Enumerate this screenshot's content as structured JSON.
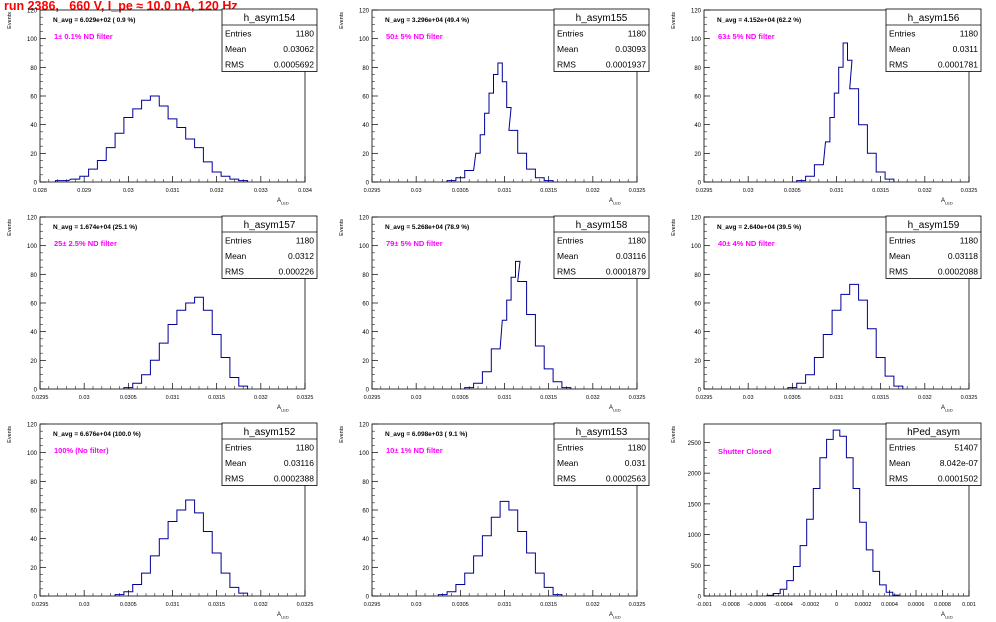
{
  "page": {
    "title": "run 2386,   660 V, I_pe ≈ 10.0 nA, 120 Hz"
  },
  "colors": {
    "title": "#ff0000",
    "histogram_line": "#000099",
    "annotation": "#ff00ff",
    "axis": "#000000"
  },
  "stats_labels": {
    "entries": "Entries",
    "mean": "Mean",
    "rms": "RMS"
  },
  "chart_data": [
    {
      "type": "bar",
      "name": "h_asym154",
      "ylabel": "Events",
      "xlabel": "A_LED",
      "navg": "N_avg = 6.029e+02 ( 0.9 %)",
      "filter": "1± 0.1% ND filter",
      "entries": "1180",
      "mean": "0.03062",
      "rms": "0.0005692",
      "xlim": [
        0.028,
        0.034
      ],
      "ylim": [
        0,
        120
      ],
      "xticks": [
        "0.028",
        "0.029",
        "0.03",
        "0.031",
        "0.032",
        "0.033",
        "0.034"
      ],
      "yticks": [
        "0",
        "20",
        "40",
        "60",
        "80",
        "100",
        "120"
      ],
      "x": [
        0.0285,
        0.0288,
        0.029,
        0.0292,
        0.0294,
        0.0296,
        0.0298,
        0.03,
        0.0302,
        0.0304,
        0.0306,
        0.0308,
        0.031,
        0.0312,
        0.0314,
        0.0316,
        0.0318,
        0.032,
        0.0322,
        0.0324,
        0.0326
      ],
      "values": [
        1,
        2,
        4,
        9,
        15,
        24,
        34,
        45,
        51,
        57,
        60,
        53,
        44,
        38,
        30,
        24,
        14,
        7,
        4,
        2,
        1
      ]
    },
    {
      "type": "bar",
      "name": "h_asym155",
      "ylabel": "Events",
      "xlabel": "A_LED",
      "navg": "N_avg = 3.296e+04 (49.4 %)",
      "filter": "50± 5% ND filter",
      "entries": "1180",
      "mean": "0.03093",
      "rms": "0.0001937",
      "xlim": [
        0.0295,
        0.0325
      ],
      "ylim": [
        0,
        120
      ],
      "xticks": [
        "0.0295",
        "0.03",
        "0.0305",
        "0.031",
        "0.0315",
        "0.032",
        "0.0325"
      ],
      "yticks": [
        "0",
        "20",
        "40",
        "60",
        "80",
        "100",
        "120"
      ],
      "x": [
        0.0304,
        0.0305,
        0.0306,
        0.0307,
        0.03075,
        0.0308,
        0.03085,
        0.0309,
        0.03095,
        0.031,
        0.03105,
        0.0311,
        0.0312,
        0.0313,
        0.0314,
        0.0315
      ],
      "values": [
        1,
        3,
        8,
        20,
        33,
        48,
        62,
        75,
        83,
        70,
        52,
        36,
        20,
        9,
        3,
        1
      ]
    },
    {
      "type": "bar",
      "name": "h_asym156",
      "ylabel": "Events",
      "xlabel": "A_LED",
      "navg": "N_avg = 4.152e+04 (62.2 %)",
      "filter": "63± 5% ND filter",
      "entries": "1180",
      "mean": "0.0311",
      "rms": "0.0001781",
      "xlim": [
        0.0295,
        0.0325
      ],
      "ylim": [
        0,
        120
      ],
      "xticks": [
        "0.0295",
        "0.03",
        "0.0305",
        "0.031",
        "0.0315",
        "0.032",
        "0.0325"
      ],
      "yticks": [
        "0",
        "20",
        "40",
        "60",
        "80",
        "100",
        "120"
      ],
      "x": [
        0.0306,
        0.0307,
        0.0308,
        0.0309,
        0.03095,
        0.031,
        0.03105,
        0.0311,
        0.03115,
        0.0312,
        0.0313,
        0.0314,
        0.0315,
        0.0316
      ],
      "values": [
        1,
        4,
        12,
        28,
        45,
        62,
        80,
        97,
        85,
        65,
        40,
        20,
        7,
        2
      ]
    },
    {
      "type": "bar",
      "name": "h_asym157",
      "ylabel": "Events",
      "xlabel": "A_LED",
      "navg": "N_avg = 1.674e+04 (25.1 %)",
      "filter": "25± 2.5% ND filter",
      "entries": "1180",
      "mean": "0.0312",
      "rms": "0.000226",
      "xlim": [
        0.0295,
        0.0325
      ],
      "ylim": [
        0,
        120
      ],
      "xticks": [
        "0.0295",
        "0.03",
        "0.0305",
        "0.031",
        "0.0315",
        "0.032",
        "0.0325"
      ],
      "yticks": [
        "0",
        "20",
        "40",
        "60",
        "80",
        "100",
        "120"
      ],
      "x": [
        0.0305,
        0.0306,
        0.0307,
        0.0308,
        0.0309,
        0.031,
        0.0311,
        0.0312,
        0.0313,
        0.0314,
        0.0315,
        0.0316,
        0.0317,
        0.0318
      ],
      "values": [
        1,
        4,
        10,
        20,
        32,
        45,
        55,
        60,
        64,
        55,
        38,
        22,
        8,
        2
      ]
    },
    {
      "type": "bar",
      "name": "h_asym158",
      "ylabel": "Events",
      "xlabel": "A_LED",
      "navg": "N_avg = 5.268e+04 (78.9 %)",
      "filter": "79± 5% ND filter",
      "entries": "1180",
      "mean": "0.03116",
      "rms": "0.0001879",
      "xlim": [
        0.0295,
        0.0325
      ],
      "ylim": [
        0,
        120
      ],
      "xticks": [
        "0.0295",
        "0.03",
        "0.0305",
        "0.031",
        "0.0315",
        "0.032",
        "0.0325"
      ],
      "yticks": [
        "0",
        "20",
        "40",
        "60",
        "80",
        "100",
        "120"
      ],
      "x": [
        0.0306,
        0.0307,
        0.0308,
        0.0309,
        0.031,
        0.03105,
        0.0311,
        0.03115,
        0.0312,
        0.0313,
        0.0314,
        0.0315,
        0.0316,
        0.0317
      ],
      "values": [
        1,
        4,
        12,
        28,
        48,
        62,
        78,
        89,
        75,
        52,
        30,
        14,
        5,
        1
      ]
    },
    {
      "type": "bar",
      "name": "h_asym159",
      "ylabel": "Events",
      "xlabel": "A_LED",
      "navg": "N_avg = 2.640e+04 (39.5 %)",
      "filter": "40± 4% ND filter",
      "entries": "1180",
      "mean": "0.03118",
      "rms": "0.0002088",
      "xlim": [
        0.0295,
        0.0325
      ],
      "ylim": [
        0,
        120
      ],
      "xticks": [
        "0.0295",
        "0.03",
        "0.0305",
        "0.031",
        "0.0315",
        "0.032",
        "0.0325"
      ],
      "yticks": [
        "0",
        "20",
        "40",
        "60",
        "80",
        "100",
        "120"
      ],
      "x": [
        0.0305,
        0.0306,
        0.0307,
        0.0308,
        0.0309,
        0.031,
        0.0311,
        0.0312,
        0.0313,
        0.0314,
        0.0315,
        0.0316,
        0.0317
      ],
      "values": [
        1,
        4,
        10,
        22,
        38,
        55,
        66,
        73,
        62,
        42,
        22,
        9,
        2
      ]
    },
    {
      "type": "bar",
      "name": "h_asym152",
      "ylabel": "Events",
      "xlabel": "A_LED",
      "navg": "N_avg = 6.676e+04 (100.0 %)",
      "filter": "100% (No filter)",
      "entries": "1180",
      "mean": "0.03116",
      "rms": "0.0002388",
      "xlim": [
        0.0295,
        0.0325
      ],
      "ylim": [
        0,
        120
      ],
      "xticks": [
        "0.0295",
        "0.03",
        "0.0305",
        "0.031",
        "0.0315",
        "0.032",
        "0.0325"
      ],
      "yticks": [
        "0",
        "20",
        "40",
        "60",
        "80",
        "100",
        "120"
      ],
      "x": [
        0.0304,
        0.0305,
        0.0306,
        0.0307,
        0.0308,
        0.0309,
        0.031,
        0.0311,
        0.0312,
        0.0313,
        0.0314,
        0.0315,
        0.0316,
        0.0317,
        0.0318
      ],
      "values": [
        1,
        3,
        8,
        16,
        28,
        40,
        52,
        60,
        67,
        58,
        45,
        30,
        16,
        6,
        2
      ]
    },
    {
      "type": "bar",
      "name": "h_asym153",
      "ylabel": "Events",
      "xlabel": "A_LED",
      "navg": "N_avg = 6.098e+03 ( 9.1 %)",
      "filter": "10± 1% ND filter",
      "entries": "1180",
      "mean": "0.031",
      "rms": "0.0002563",
      "xlim": [
        0.0295,
        0.0325
      ],
      "ylim": [
        0,
        120
      ],
      "xticks": [
        "0.0295",
        "0.03",
        "0.0305",
        "0.031",
        "0.0315",
        "0.032",
        "0.0325"
      ],
      "yticks": [
        "0",
        "20",
        "40",
        "60",
        "80",
        "100",
        "120"
      ],
      "x": [
        0.0303,
        0.0304,
        0.0305,
        0.0306,
        0.0307,
        0.0308,
        0.0309,
        0.031,
        0.0311,
        0.0312,
        0.0313,
        0.0314,
        0.0315,
        0.0316
      ],
      "values": [
        1,
        3,
        8,
        16,
        28,
        42,
        55,
        66,
        60,
        45,
        30,
        16,
        6,
        1
      ]
    },
    {
      "type": "bar",
      "name": "hPed_asym",
      "ylabel": "Events",
      "xlabel": "A_LED",
      "navg": "",
      "filter": "Shutter Closed",
      "entries": "51407",
      "mean": "8.042e-07",
      "rms": "0.0001502",
      "xlim": [
        -0.001,
        0.001
      ],
      "ylim": [
        0,
        2800
      ],
      "xticks": [
        "-0.001",
        "-0.0008",
        "-0.0006",
        "-0.0004",
        "-0.0002",
        "0",
        "0.0002",
        "0.0004",
        "0.0006",
        "0.0008",
        "0.001"
      ],
      "yticks": [
        "0",
        "500",
        "1000",
        "1500",
        "2000",
        "2500"
      ],
      "x": [
        -0.0005,
        -0.00045,
        -0.0004,
        -0.00035,
        -0.0003,
        -0.00025,
        -0.0002,
        -0.00015,
        -0.0001,
        -5e-05,
        0.0,
        5e-05,
        0.0001,
        0.00015,
        0.0002,
        0.00025,
        0.0003,
        0.00035,
        0.0004,
        0.00045
      ],
      "values": [
        10,
        40,
        110,
        250,
        480,
        820,
        1250,
        1750,
        2250,
        2550,
        2700,
        2600,
        2250,
        1750,
        1200,
        750,
        400,
        180,
        60,
        15
      ]
    }
  ]
}
